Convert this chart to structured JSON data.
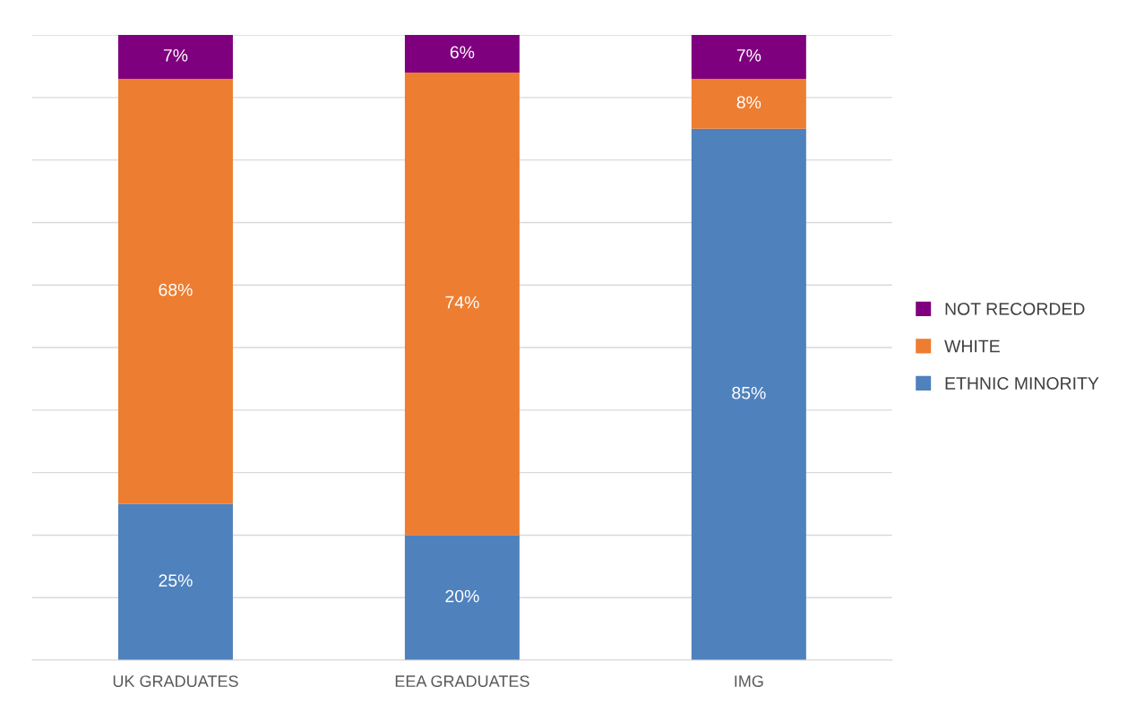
{
  "chart_data": {
    "type": "bar",
    "stacked": true,
    "categories": [
      "UK GRADUATES",
      "EEA GRADUATES",
      "IMG"
    ],
    "series": [
      {
        "name": "ETHNIC MINORITY",
        "color": "#4f81bd",
        "values": [
          25,
          20,
          85
        ],
        "value_labels": [
          "25%",
          "20%",
          "85%"
        ]
      },
      {
        "name": "WHITE",
        "color": "#ed7d31",
        "values": [
          68,
          74,
          8
        ],
        "value_labels": [
          "68%",
          "74%",
          "8%"
        ]
      },
      {
        "name": "NOT RECORDED",
        "color": "#7f007f",
        "values": [
          7,
          6,
          7
        ],
        "value_labels": [
          "7%",
          "6%",
          "7%"
        ]
      }
    ],
    "ylim": [
      0,
      100
    ],
    "yticks": [
      {
        "value": 0,
        "label": null
      },
      {
        "value": 10,
        "label": null
      },
      {
        "value": 20,
        "label": null
      },
      {
        "value": 30,
        "label": null
      },
      {
        "value": 40,
        "label": null
      },
      {
        "value": 50,
        "label": null
      },
      {
        "value": 60,
        "label": null
      },
      {
        "value": 70,
        "label": null
      },
      {
        "value": 80,
        "label": null
      },
      {
        "value": 90,
        "label": null
      },
      {
        "value": 100,
        "label": null
      }
    ],
    "tick_labels": "x",
    "grid": "y",
    "legend": "right"
  }
}
